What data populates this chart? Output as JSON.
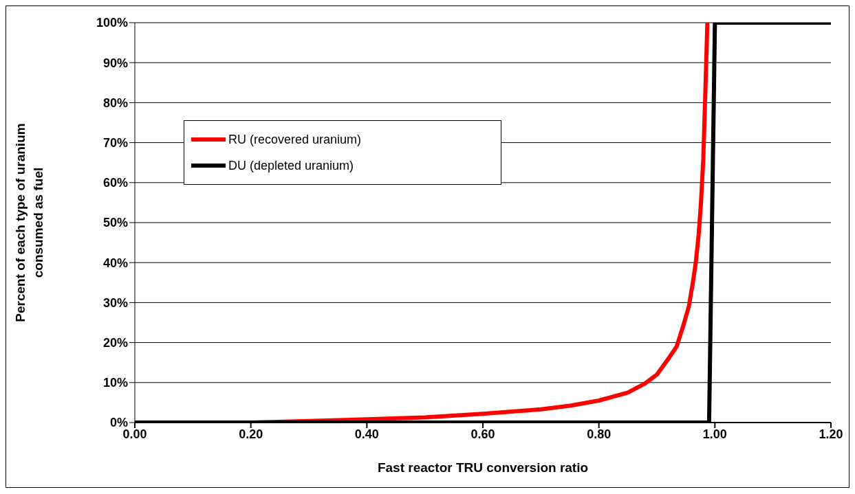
{
  "chart_data": {
    "type": "line",
    "xlabel": "Fast reactor TRU conversion ratio",
    "ylabel": "Percent of each type of uranium consumed as fuel",
    "xlim": [
      0,
      1.2
    ],
    "xticks": [
      {
        "value": 0,
        "label": "0.00"
      },
      {
        "value": 0.2,
        "label": "0.20"
      },
      {
        "value": 0.4,
        "label": "0.40"
      },
      {
        "value": 0.6,
        "label": "0.60"
      },
      {
        "value": 0.8,
        "label": "0.80"
      },
      {
        "value": 1.0,
        "label": "1.00"
      },
      {
        "value": 1.2,
        "label": "1.20"
      }
    ],
    "ylim": [
      0,
      100
    ],
    "yticks": [
      {
        "value": 0,
        "label": "0%"
      },
      {
        "value": 10,
        "label": "10%"
      },
      {
        "value": 20,
        "label": "20%"
      },
      {
        "value": 30,
        "label": "30%"
      },
      {
        "value": 40,
        "label": "40%"
      },
      {
        "value": 50,
        "label": "50%"
      },
      {
        "value": 60,
        "label": "60%"
      },
      {
        "value": 70,
        "label": "70%"
      },
      {
        "value": 80,
        "label": "80%"
      },
      {
        "value": 90,
        "label": "90%"
      },
      {
        "value": 100,
        "label": "100%"
      }
    ],
    "grid": "y",
    "legend": "top left",
    "marker": "none",
    "line_style": "solid",
    "series": [
      {
        "name": "RU (recovered uranium)",
        "color": "#ff0000",
        "x": [
          0,
          0.2,
          0.3,
          0.4,
          0.5,
          0.6,
          0.7,
          0.75,
          0.8,
          0.85,
          0.88,
          0.9,
          0.92,
          0.934,
          0.945,
          0.955,
          0.962,
          0.967,
          0.972,
          0.976,
          0.98,
          0.984,
          0.987
        ],
        "values": [
          0,
          0,
          0.4,
          0.8,
          1.3,
          2.2,
          3.3,
          4.2,
          5.5,
          7.5,
          9.8,
          12,
          16,
          19,
          24,
          29,
          35,
          40,
          47,
          55,
          66,
          85,
          100
        ]
      },
      {
        "name": "DU (depleted uranium)",
        "color": "#000000",
        "x": [
          0,
          0.99,
          1.0,
          1.2
        ],
        "values": [
          0,
          0,
          100,
          100
        ]
      }
    ]
  }
}
